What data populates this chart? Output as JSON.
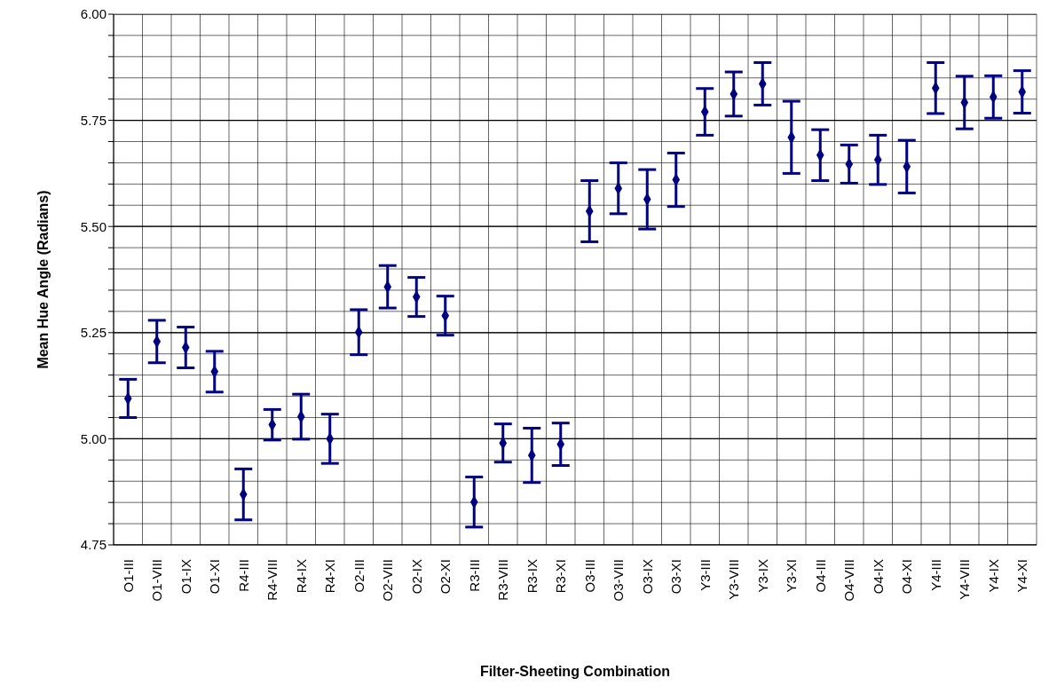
{
  "chart_data": {
    "type": "scatter",
    "xlabel": "Filter-Sheeting Combination",
    "ylabel": "Mean Hue Angle (Radians)",
    "categories": [
      "O1-III",
      "O1-VIII",
      "O1-IX",
      "O1-XI",
      "R4-III",
      "R4-VIII",
      "R4-IX",
      "R4-XI",
      "O2-III",
      "O2-VIII",
      "O2-IX",
      "O2-XI",
      "R3-III",
      "R3-VIII",
      "R3-IX",
      "R3-XI",
      "O3-III",
      "O3-VIII",
      "O3-IX",
      "O3-XI",
      "Y3-III",
      "Y3-VIII",
      "Y3-IX",
      "Y3-XI",
      "O4-III",
      "O4-VIII",
      "O4-IX",
      "O4-XI",
      "Y4-III",
      "Y4-VIII",
      "Y4-IX",
      "Y4-XI"
    ],
    "values": [
      5.095,
      5.229,
      5.215,
      5.158,
      4.869,
      5.033,
      5.052,
      5.0,
      5.251,
      5.358,
      5.334,
      5.29,
      4.851,
      4.99,
      4.961,
      4.987,
      5.536,
      5.59,
      5.564,
      5.61,
      5.77,
      5.812,
      5.836,
      5.71,
      5.668,
      5.647,
      5.657,
      5.641,
      5.826,
      5.792,
      5.805,
      5.817
    ],
    "errors": [
      0.045,
      0.05,
      0.048,
      0.048,
      0.06,
      0.036,
      0.053,
      0.058,
      0.053,
      0.05,
      0.046,
      0.046,
      0.059,
      0.045,
      0.064,
      0.05,
      0.072,
      0.06,
      0.07,
      0.063,
      0.055,
      0.052,
      0.05,
      0.085,
      0.06,
      0.045,
      0.058,
      0.062,
      0.06,
      0.062,
      0.05,
      0.05
    ],
    "color": "#000080",
    "marker": "diamond",
    "grid": true,
    "ylim": [
      4.75,
      6.0
    ],
    "yticks": [
      {
        "value": 4.75,
        "label": "4.75"
      },
      {
        "value": 4.8,
        "label": null
      },
      {
        "value": 4.85,
        "label": null
      },
      {
        "value": 4.9,
        "label": null
      },
      {
        "value": 4.95,
        "label": null
      },
      {
        "value": 5.0,
        "label": "5.00"
      },
      {
        "value": 5.05,
        "label": null
      },
      {
        "value": 5.1,
        "label": null
      },
      {
        "value": 5.15,
        "label": null
      },
      {
        "value": 5.2,
        "label": null
      },
      {
        "value": 5.25,
        "label": "5.25"
      },
      {
        "value": 5.3,
        "label": null
      },
      {
        "value": 5.35,
        "label": null
      },
      {
        "value": 5.4,
        "label": null
      },
      {
        "value": 5.45,
        "label": null
      },
      {
        "value": 5.5,
        "label": "5.50"
      },
      {
        "value": 5.55,
        "label": null
      },
      {
        "value": 5.6,
        "label": null
      },
      {
        "value": 5.65,
        "label": null
      },
      {
        "value": 5.7,
        "label": null
      },
      {
        "value": 5.75,
        "label": "5.75"
      },
      {
        "value": 5.8,
        "label": null
      },
      {
        "value": 5.85,
        "label": null
      },
      {
        "value": 5.9,
        "label": null
      },
      {
        "value": 5.95,
        "label": null
      },
      {
        "value": 6.0,
        "label": "6.00"
      }
    ]
  }
}
